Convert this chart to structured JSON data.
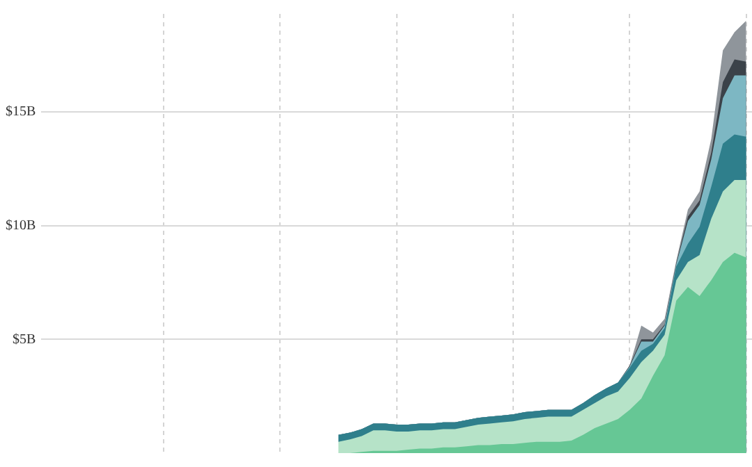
{
  "chart_data": {
    "type": "area",
    "stacked": true,
    "grid": true,
    "tick_labels": "y",
    "categories": [
      null,
      null,
      null,
      null,
      null,
      null,
      null,
      null,
      null,
      null,
      null,
      null,
      null,
      null,
      null,
      null,
      null,
      null,
      null,
      null,
      null,
      null,
      null,
      null,
      null,
      null,
      null,
      null,
      null,
      null,
      null,
      null,
      null,
      null,
      null,
      null,
      null,
      null,
      null,
      null,
      null,
      null,
      null,
      null,
      null,
      null,
      null,
      null,
      null,
      null,
      null,
      null,
      null,
      null,
      null,
      null,
      null,
      null,
      null,
      null,
      null
    ],
    "ylim": [
      0,
      19.3
    ],
    "yticks": [
      {
        "value": 5,
        "label": "$5B"
      },
      {
        "value": 10,
        "label": "$10B"
      },
      {
        "value": 15,
        "label": "$15B"
      }
    ],
    "series": [
      {
        "color": "#66c795",
        "values": [
          null,
          null,
          null,
          null,
          null,
          null,
          null,
          null,
          null,
          null,
          null,
          null,
          null,
          null,
          null,
          null,
          null,
          null,
          null,
          null,
          null,
          null,
          null,
          null,
          null,
          0,
          0,
          0.05,
          0.1,
          0.1,
          0.1,
          0.15,
          0.2,
          0.2,
          0.25,
          0.25,
          0.3,
          0.35,
          0.35,
          0.4,
          0.4,
          0.45,
          0.5,
          0.5,
          0.5,
          0.55,
          0.8,
          1.1,
          1.3,
          1.5,
          1.9,
          2.4,
          3.4,
          4.3,
          6.7,
          7.3,
          6.9,
          7.6,
          8.4,
          8.8,
          8.6
        ]
      },
      {
        "color": "#b6e3c8",
        "values": [
          null,
          null,
          null,
          null,
          null,
          null,
          null,
          null,
          null,
          null,
          null,
          null,
          null,
          null,
          null,
          null,
          null,
          null,
          null,
          null,
          null,
          null,
          null,
          null,
          null,
          0.5,
          0.6,
          0.7,
          0.9,
          0.9,
          0.85,
          0.8,
          0.8,
          0.8,
          0.8,
          0.8,
          0.85,
          0.9,
          0.95,
          0.95,
          1.0,
          1.05,
          1.05,
          1.1,
          1.1,
          1.05,
          1.1,
          1.1,
          1.2,
          1.2,
          1.4,
          1.6,
          1.1,
          0.9,
          0.9,
          1.1,
          1.8,
          2.7,
          3.1,
          3.2,
          3.4
        ]
      },
      {
        "color": "#2f7f8c",
        "values": [
          null,
          null,
          null,
          null,
          null,
          null,
          null,
          null,
          null,
          null,
          null,
          null,
          null,
          null,
          null,
          null,
          null,
          null,
          null,
          null,
          null,
          null,
          null,
          null,
          null,
          0.3,
          0.3,
          0.3,
          0.3,
          0.3,
          0.3,
          0.3,
          0.3,
          0.3,
          0.3,
          0.3,
          0.3,
          0.3,
          0.3,
          0.3,
          0.3,
          0.3,
          0.3,
          0.3,
          0.3,
          0.3,
          0.3,
          0.35,
          0.35,
          0.4,
          0.45,
          0.5,
          0.3,
          0.3,
          0.6,
          0.8,
          1.25,
          1.4,
          2.1,
          2.0,
          1.9
        ]
      },
      {
        "color": "#7db7c3",
        "values": [
          null,
          null,
          null,
          null,
          null,
          null,
          null,
          null,
          null,
          null,
          null,
          null,
          null,
          null,
          null,
          null,
          null,
          null,
          null,
          null,
          null,
          null,
          null,
          null,
          null,
          0,
          0,
          0,
          0,
          0,
          0,
          0,
          0,
          0,
          0,
          0,
          0,
          0,
          0,
          0,
          0,
          0,
          0,
          0,
          0,
          0,
          0,
          0,
          0,
          0,
          0.05,
          0.4,
          0.1,
          0.1,
          0.1,
          1.0,
          0.95,
          1.2,
          2.0,
          2.6,
          2.7
        ]
      },
      {
        "color": "#3b4249",
        "values": [
          null,
          null,
          null,
          null,
          null,
          null,
          null,
          null,
          null,
          null,
          null,
          null,
          null,
          null,
          null,
          null,
          null,
          null,
          null,
          null,
          null,
          null,
          null,
          null,
          null,
          0,
          0,
          0,
          0,
          0,
          0,
          0,
          0,
          0,
          0,
          0,
          0,
          0,
          0,
          0,
          0,
          0,
          0,
          0,
          0,
          0,
          0,
          0,
          0,
          0,
          0.05,
          0.1,
          0.1,
          0.05,
          0.05,
          0.2,
          0.2,
          0.3,
          0.7,
          0.7,
          0.6
        ]
      },
      {
        "color": "#8f959b",
        "values": [
          null,
          null,
          null,
          null,
          null,
          null,
          null,
          null,
          null,
          null,
          null,
          null,
          null,
          null,
          null,
          null,
          null,
          null,
          null,
          null,
          null,
          null,
          null,
          null,
          null,
          0,
          0,
          0,
          0,
          0,
          0,
          0,
          0,
          0,
          0,
          0,
          0,
          0,
          0,
          0,
          0,
          0,
          0,
          0,
          0,
          0,
          0,
          0,
          0,
          0,
          0,
          0.6,
          0.3,
          0.25,
          0.1,
          0.3,
          0.4,
          0.6,
          1.4,
          1.2,
          1.8
        ]
      }
    ]
  }
}
